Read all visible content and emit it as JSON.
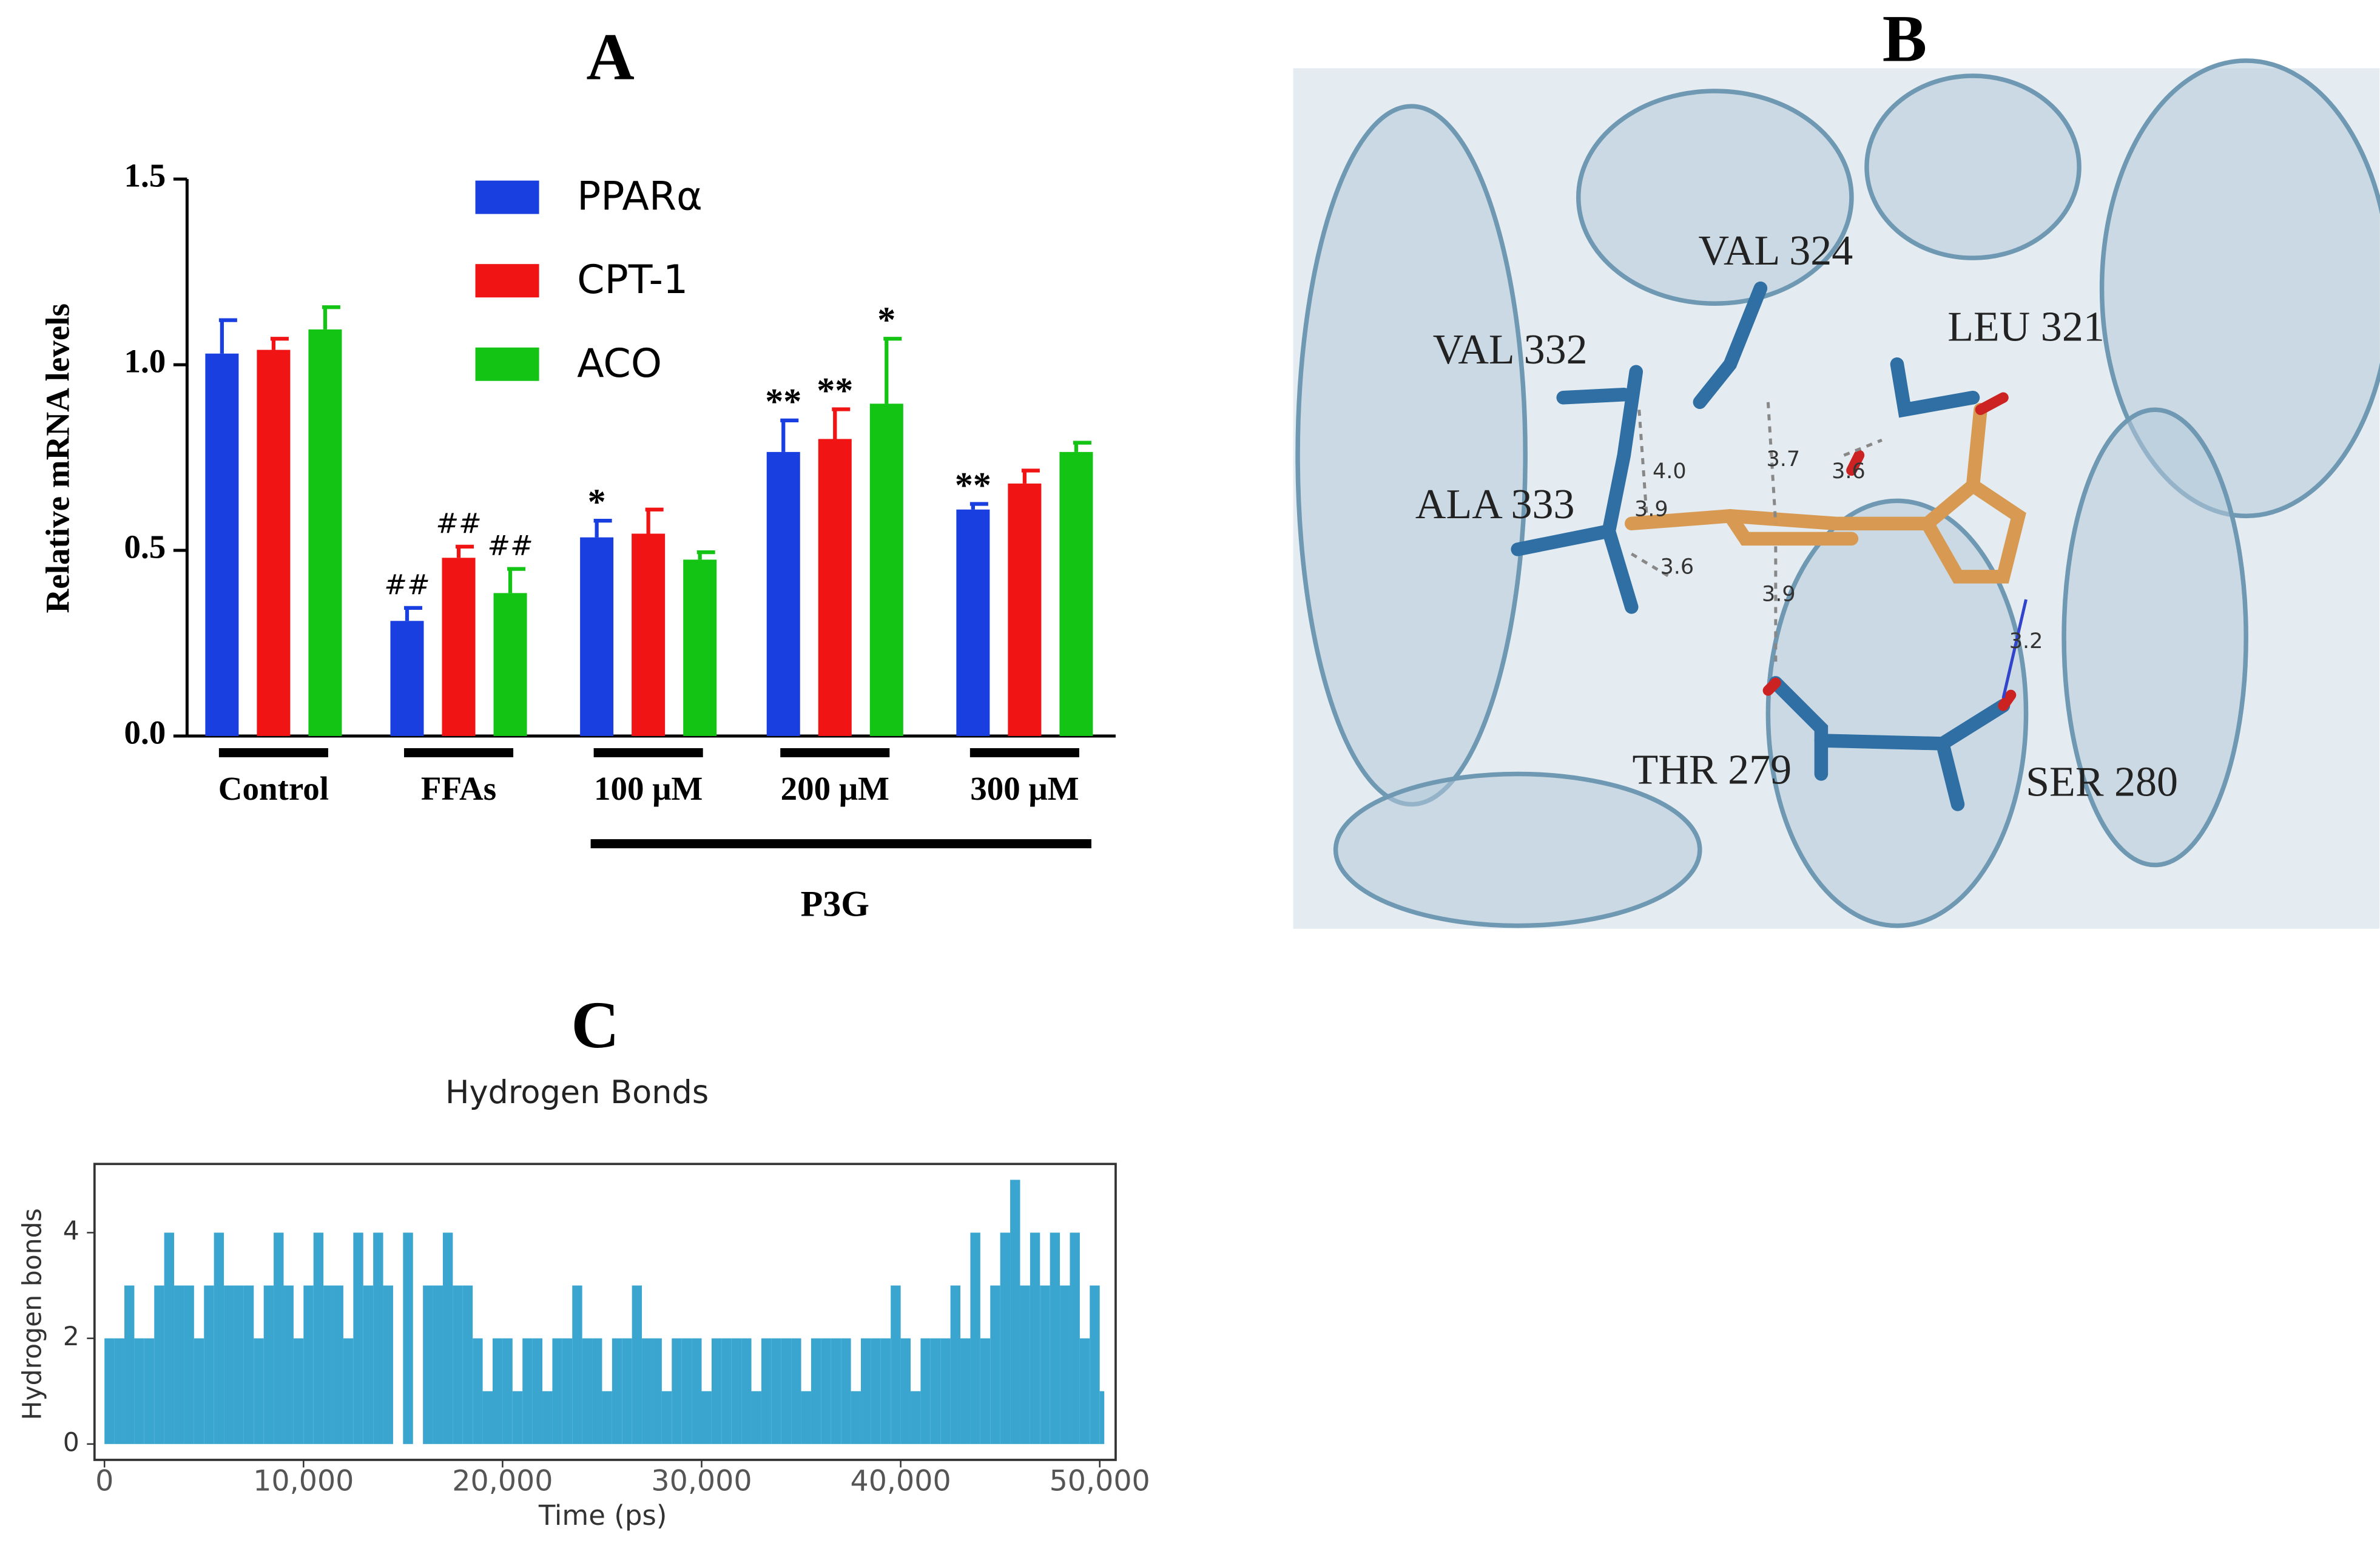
{
  "chart_data": [
    {
      "type": "bar",
      "title": "A",
      "y_label": "Relative mRNA levels",
      "categories": [
        "Control",
        "FFAs",
        "100 μM",
        "200 μM",
        "300 μM"
      ],
      "group_label": "P3G",
      "series": [
        {
          "name": "PPARα",
          "color": "#1a3fe0",
          "values": [
            1.03,
            0.31,
            0.535,
            0.765,
            0.61
          ],
          "errors": [
            0.09,
            0.035,
            0.045,
            0.085,
            0.015
          ],
          "annotations": [
            null,
            "##",
            "*",
            "**",
            "**"
          ]
        },
        {
          "name": "CPT-1",
          "color": "#f01414",
          "values": [
            1.04,
            0.48,
            0.545,
            0.8,
            0.68
          ],
          "errors": [
            0.03,
            0.03,
            0.065,
            0.08,
            0.035
          ],
          "annotations": [
            null,
            "##",
            null,
            "**",
            null
          ]
        },
        {
          "name": "ACO",
          "color": "#14c414",
          "values": [
            1.095,
            0.385,
            0.475,
            0.895,
            0.765
          ],
          "errors": [
            0.06,
            0.065,
            0.02,
            0.175,
            0.025
          ],
          "annotations": [
            null,
            "##",
            null,
            "*",
            null
          ]
        }
      ],
      "ylim": [
        0,
        1.5
      ],
      "yticks": [
        {
          "value": 0,
          "label": "0.0"
        },
        {
          "value": 0.5,
          "label": "0.5"
        },
        {
          "value": 1,
          "label": "1.0"
        },
        {
          "value": 1.5,
          "label": "1.5"
        }
      ]
    },
    {
      "type": "step",
      "title": "C",
      "subtitle": "Hydrogen Bonds",
      "x_label": "Time (ps)",
      "y_label": "Hydrogen bonds",
      "color": "#3aa6d0",
      "x": [
        0,
        500,
        1000,
        1500,
        2000,
        2500,
        3000,
        3500,
        4000,
        4500,
        5000,
        5500,
        6000,
        6500,
        7000,
        7500,
        8000,
        8500,
        9000,
        9500,
        10000,
        10500,
        11000,
        11500,
        12000,
        12500,
        13000,
        13500,
        14000,
        14500,
        15000,
        15500,
        16000,
        16500,
        17000,
        17500,
        18000,
        18500,
        19000,
        19500,
        20000,
        20500,
        21000,
        21500,
        22000,
        22500,
        23000,
        23500,
        24000,
        24500,
        25000,
        25500,
        26000,
        26500,
        27000,
        27500,
        28000,
        28500,
        29000,
        29500,
        30000,
        30500,
        31000,
        31500,
        32000,
        32500,
        33000,
        33500,
        34000,
        34500,
        35000,
        35500,
        36000,
        36500,
        37000,
        37500,
        38000,
        38500,
        39000,
        39500,
        40000,
        40500,
        41000,
        41500,
        42000,
        42500,
        43000,
        43500,
        44000,
        44500,
        45000,
        45500,
        46000,
        46500,
        47000,
        47500,
        48000,
        48500,
        49000,
        49500,
        50000
      ],
      "values": [
        2,
        2,
        3,
        2,
        2,
        3,
        4,
        3,
        3,
        2,
        3,
        4,
        3,
        3,
        3,
        2,
        3,
        4,
        3,
        2,
        3,
        4,
        3,
        3,
        2,
        4,
        3,
        4,
        3,
        0,
        4,
        0,
        3,
        3,
        4,
        3,
        3,
        2,
        1,
        2,
        2,
        1,
        2,
        2,
        1,
        2,
        2,
        3,
        2,
        2,
        1,
        2,
        2,
        3,
        2,
        2,
        1,
        2,
        2,
        2,
        1,
        2,
        2,
        2,
        2,
        1,
        2,
        2,
        2,
        2,
        1,
        2,
        2,
        2,
        2,
        1,
        2,
        2,
        2,
        3,
        2,
        1,
        2,
        2,
        2,
        3,
        2,
        4,
        2,
        3,
        4,
        5,
        3,
        4,
        3,
        4,
        3,
        4,
        2,
        3,
        1
      ],
      "xlim": [
        -500,
        50800
      ],
      "ylim": [
        -0.3,
        5.3
      ],
      "xticks": [
        0,
        {
          "value": 10000,
          "label": "10,000"
        },
        {
          "value": 20000,
          "label": "20,000"
        },
        {
          "value": 30000,
          "label": "30,000"
        },
        {
          "value": 40000,
          "label": "40,000"
        },
        {
          "value": 50000,
          "label": "50,000"
        }
      ],
      "yticks": [
        0,
        2,
        4
      ]
    }
  ],
  "panel_b": {
    "label": "B",
    "residues": [
      "VAL 324",
      "LEU 321",
      "VAL 332",
      "ALA 333",
      "THR 279",
      "SER 280"
    ],
    "distances": [
      "4.0",
      "3.7",
      "3.6",
      "3.9",
      "3.6",
      "3.9",
      "3.2"
    ]
  }
}
